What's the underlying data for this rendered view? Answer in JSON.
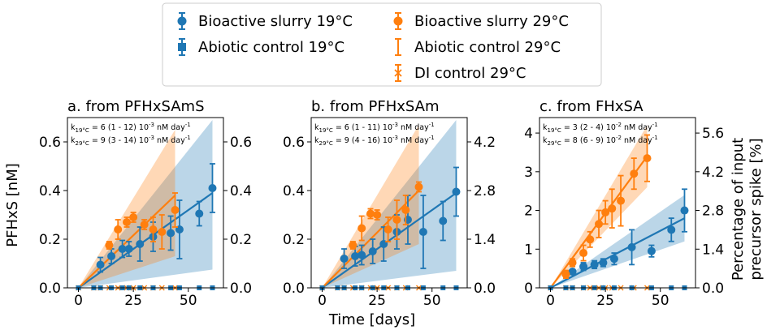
{
  "colors": {
    "blue": "#1f77b4",
    "orange": "#ff7f0e"
  },
  "legend": {
    "items": [
      {
        "label": "Bioactive slurry 19°C",
        "color": "blue",
        "marker": "circle-errorbar"
      },
      {
        "label": "Bioactive slurry 29°C",
        "color": "orange",
        "marker": "circle-errorbar"
      },
      {
        "label": "Abiotic control 19°C",
        "color": "blue",
        "marker": "square-errorbar"
      },
      {
        "label": "Abiotic control 29°C",
        "color": "orange",
        "marker": "bar-errorbar"
      },
      {
        "label": "DI control 29°C",
        "color": "orange",
        "marker": "x-errorbar"
      }
    ]
  },
  "axes": {
    "xlabel": "Time [days]",
    "ylabel_left": "PFHxS [nM]",
    "ylabel_right_line1": "Percentage of input",
    "ylabel_right_line2": "precursor spike [%]"
  },
  "chart_data": [
    {
      "type": "scatter",
      "title": "a. from PFHxSAmS",
      "rate_19": "k",
      "rate_19_sub": "19°C",
      "rate_19_text": " = 6 (1 - 12) 10",
      "rate_19_exp": "-3",
      "rate_19_unit": " nM day",
      "rate_19_unit_exp": "-1",
      "rate_29": "k",
      "rate_29_sub": "29°C",
      "rate_29_text": " = 9 (3 - 14) 10",
      "rate_29_exp": "-3",
      "rate_29_unit": " nM day",
      "rate_29_unit_exp": "-1",
      "xlim": [
        -5,
        66
      ],
      "ylim": [
        0,
        0.7
      ],
      "xticks": [
        0,
        25,
        50
      ],
      "yticks_left": [
        0.0,
        0.2,
        0.4,
        0.6
      ],
      "yticks_left_labels": [
        "0.0",
        "0.2",
        "0.4",
        "0.6"
      ],
      "yticks_right_labels": [
        "0.0",
        "0.2",
        "0.4",
        "0.6"
      ],
      "series": [
        {
          "name": "Bioactive slurry 19°C",
          "color": "blue",
          "x": [
            10,
            15,
            20,
            23,
            28,
            34,
            42,
            46,
            55,
            61
          ],
          "y": [
            0.095,
            0.13,
            0.16,
            0.16,
            0.18,
            0.21,
            0.225,
            0.24,
            0.305,
            0.41
          ],
          "err": [
            0.03,
            0.03,
            0.035,
            0.03,
            0.07,
            0.06,
            0.07,
            0.12,
            0.05,
            0.1
          ]
        },
        {
          "name": "Bioactive slurry 29°C",
          "color": "orange",
          "x": [
            14,
            18,
            22,
            25,
            30,
            34,
            38,
            44
          ],
          "y": [
            0.175,
            0.24,
            0.27,
            0.29,
            0.26,
            0.24,
            0.23,
            0.32
          ],
          "err": [
            0.015,
            0.04,
            0.02,
            0.02,
            0.02,
            0.05,
            0.07,
            0.07
          ]
        }
      ],
      "fits": [
        {
          "color": "blue",
          "x0": 0,
          "x1": 61,
          "y0": 0,
          "y1": 0.39,
          "band_lo": 0.075,
          "band_hi": 0.69
        },
        {
          "color": "orange",
          "x0": 0,
          "x1": 44,
          "y0": 0,
          "y1": 0.38,
          "band_lo": 0.13,
          "band_hi": 0.65
        }
      ],
      "bottom_markers": {
        "blue_x": [
          0,
          7,
          10,
          15,
          20,
          23,
          28,
          34,
          42,
          46,
          55,
          61
        ],
        "orange_x": [
          0,
          7,
          10,
          14,
          18,
          22,
          25,
          30,
          34,
          38,
          44
        ]
      }
    },
    {
      "type": "scatter",
      "title": "b. from PFHxSAm",
      "rate_19": "k",
      "rate_19_sub": "19°C",
      "rate_19_text": " = 6 (1 - 11) 10",
      "rate_19_exp": "-3",
      "rate_19_unit": " nM day",
      "rate_19_unit_exp": "-1",
      "rate_29": "k",
      "rate_29_sub": "29°C",
      "rate_29_text": " = 9 (4 - 16) 10",
      "rate_29_exp": "-3",
      "rate_29_unit": " nM day",
      "rate_29_unit_exp": "-1",
      "xlim": [
        -5,
        66
      ],
      "ylim": [
        0,
        0.7
      ],
      "xticks": [
        0,
        25,
        50
      ],
      "yticks_left": [
        0.0,
        0.2,
        0.4,
        0.6
      ],
      "yticks_left_labels": [
        "0.0",
        "0.2",
        "0.4",
        "0.6"
      ],
      "yticks_right_labels": [
        "0.0",
        "1.4",
        "2.8",
        "4.2"
      ],
      "series": [
        {
          "name": "Bioactive slurry 19°C",
          "color": "blue",
          "x": [
            10,
            15,
            18,
            23,
            28,
            34,
            39,
            46,
            55,
            61
          ],
          "y": [
            0.12,
            0.13,
            0.135,
            0.15,
            0.18,
            0.23,
            0.28,
            0.23,
            0.275,
            0.395
          ],
          "err": [
            0.04,
            0.04,
            0.04,
            0.05,
            0.07,
            0.07,
            0.1,
            0.15,
            0.08,
            0.1
          ]
        },
        {
          "name": "Bioactive slurry 29°C",
          "color": "orange",
          "x": [
            14,
            18,
            22,
            25,
            30,
            34,
            38,
            44
          ],
          "y": [
            0.175,
            0.245,
            0.305,
            0.3,
            0.24,
            0.28,
            0.32,
            0.415
          ],
          "err": [
            0.015,
            0.05,
            0.02,
            0.02,
            0.05,
            0.08,
            0.06,
            0.02
          ]
        }
      ],
      "fits": [
        {
          "color": "blue",
          "x0": 0,
          "x1": 61,
          "y0": 0,
          "y1": 0.39,
          "band_lo": 0.07,
          "band_hi": 0.69
        },
        {
          "color": "orange",
          "x0": 0,
          "x1": 44,
          "y0": 0,
          "y1": 0.4,
          "band_lo": 0.18,
          "band_hi": 0.67
        }
      ],
      "bottom_markers": {
        "blue_x": [
          0,
          7,
          10,
          15,
          18,
          23,
          28,
          34,
          39,
          46,
          55,
          61
        ],
        "orange_x": [
          0,
          7,
          10,
          14,
          18,
          22,
          25,
          30,
          34,
          38,
          44
        ]
      }
    },
    {
      "type": "scatter",
      "title": "c. from FHxSA",
      "rate_19": "k",
      "rate_19_sub": "19°C",
      "rate_19_text": " = 3 (2 - 4) 10",
      "rate_19_exp": "-2",
      "rate_19_unit": " nM day",
      "rate_19_unit_exp": "-1",
      "rate_29": "k",
      "rate_29_sub": "29°C",
      "rate_29_text": " = 8 (6 - 9) 10",
      "rate_29_exp": "-2",
      "rate_29_unit": " nM day",
      "rate_29_unit_exp": "-1",
      "xlim": [
        -5,
        66
      ],
      "ylim": [
        0,
        4.4
      ],
      "xticks": [
        0,
        25,
        50
      ],
      "yticks_left": [
        0,
        1,
        2,
        3,
        4
      ],
      "yticks_left_labels": [
        "0",
        "1",
        "2",
        "3",
        "4"
      ],
      "yticks_right_labels": [
        "0.0",
        "1.4",
        "2.8",
        "4.2",
        "5.6"
      ],
      "series": [
        {
          "name": "Bioactive slurry 19°C",
          "color": "blue",
          "x": [
            7,
            10,
            15,
            20,
            24,
            29,
            37,
            46,
            55,
            61
          ],
          "y": [
            0.35,
            0.42,
            0.55,
            0.6,
            0.65,
            0.75,
            1.05,
            0.95,
            1.5,
            2.0
          ],
          "err": [
            0.05,
            0.05,
            0.1,
            0.1,
            0.1,
            0.15,
            0.45,
            0.15,
            0.3,
            0.55
          ]
        },
        {
          "name": "Bioactive slurry 29°C",
          "color": "orange",
          "x": [
            7,
            10,
            15,
            18,
            22,
            25,
            28,
            32,
            38,
            44
          ],
          "y": [
            0.35,
            0.65,
            0.9,
            1.25,
            1.65,
            1.95,
            2.05,
            2.25,
            2.95,
            3.35
          ],
          "err": [
            0.1,
            0.1,
            0.2,
            0.2,
            0.35,
            0.3,
            0.5,
            0.65,
            0.4,
            0.6
          ]
        }
      ],
      "fits": [
        {
          "color": "blue",
          "x0": 0,
          "x1": 61,
          "y0": 0,
          "y1": 1.8,
          "band_lo": 1.2,
          "band_hi": 2.4
        },
        {
          "color": "orange",
          "x0": 0,
          "x1": 44,
          "y0": 0,
          "y1": 3.4,
          "band_lo": 2.6,
          "band_hi": 4.2
        }
      ],
      "bottom_markers": {
        "blue_x": [
          0,
          7,
          10,
          15,
          20,
          24,
          29,
          37,
          46,
          55,
          61
        ],
        "orange_x": [
          0,
          7,
          10,
          15,
          18,
          22,
          25,
          28,
          32,
          38,
          44
        ]
      }
    }
  ]
}
